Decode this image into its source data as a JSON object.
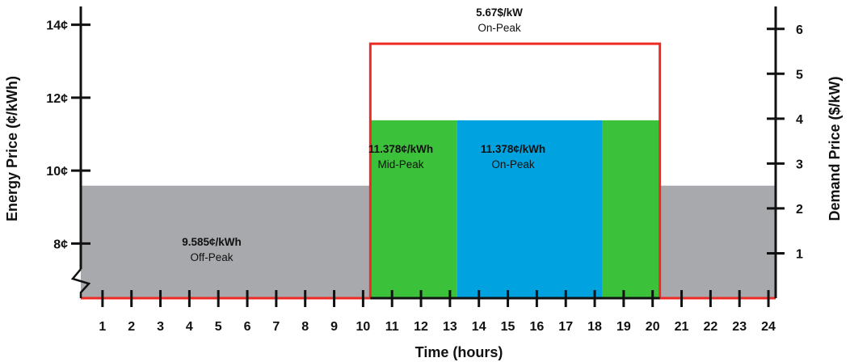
{
  "chart_data": {
    "type": "area",
    "xlabel": "Time (hours)",
    "ylabel_left": "Energy Price (¢/kWh)",
    "ylabel_right": "Demand Price ($/kW)",
    "x_ticks": [
      "1",
      "2",
      "3",
      "4",
      "5",
      "6",
      "7",
      "8",
      "9",
      "10",
      "11",
      "12",
      "13",
      "14",
      "15",
      "16",
      "17",
      "18",
      "19",
      "20",
      "21",
      "22",
      "23",
      "24"
    ],
    "x_range": [
      0,
      24
    ],
    "left_axis": {
      "range": [
        6.5,
        14.5
      ],
      "ticks": [
        8,
        10,
        12,
        14
      ],
      "tick_labels": [
        "8¢",
        "10¢",
        "12¢",
        "14¢"
      ],
      "axis_break": true
    },
    "right_axis": {
      "range": [
        0,
        6.5
      ],
      "ticks": [
        1,
        2,
        3,
        4,
        5,
        6
      ],
      "tick_labels": [
        "1",
        "2",
        "3",
        "4",
        "5",
        "6"
      ]
    },
    "energy_segments": [
      {
        "start": 0,
        "end": 10,
        "price": 9.585,
        "period": "Off-Peak",
        "color": "#a7a9ac"
      },
      {
        "start": 10,
        "end": 13,
        "price": 11.378,
        "period": "Mid-Peak",
        "color": "#3cc13b"
      },
      {
        "start": 13,
        "end": 18,
        "price": 11.378,
        "period": "On-Peak",
        "color": "#00a3e0"
      },
      {
        "start": 18,
        "end": 20,
        "price": 11.378,
        "period": "Mid-Peak",
        "color": "#3cc13b"
      },
      {
        "start": 20,
        "end": 24,
        "price": 9.585,
        "period": "Off-Peak",
        "color": "#a7a9ac"
      }
    ],
    "demand_segments": [
      {
        "start": 0,
        "end": 10,
        "price": 0
      },
      {
        "start": 10,
        "end": 20,
        "price": 5.67,
        "period": "On-Peak"
      },
      {
        "start": 20,
        "end": 24,
        "price": 0
      }
    ],
    "demand_line_color": "#ee2a24",
    "annotations": {
      "off_peak_price": "9.585¢/kWh",
      "off_peak_label": "Off-Peak",
      "mid_peak_price": "11.378¢/kWh",
      "mid_peak_label": "Mid-Peak",
      "on_peak_price": "11.378¢/kWh",
      "on_peak_label": "On-Peak",
      "demand_price": "5.67$/kW",
      "demand_label": "On-Peak"
    }
  }
}
